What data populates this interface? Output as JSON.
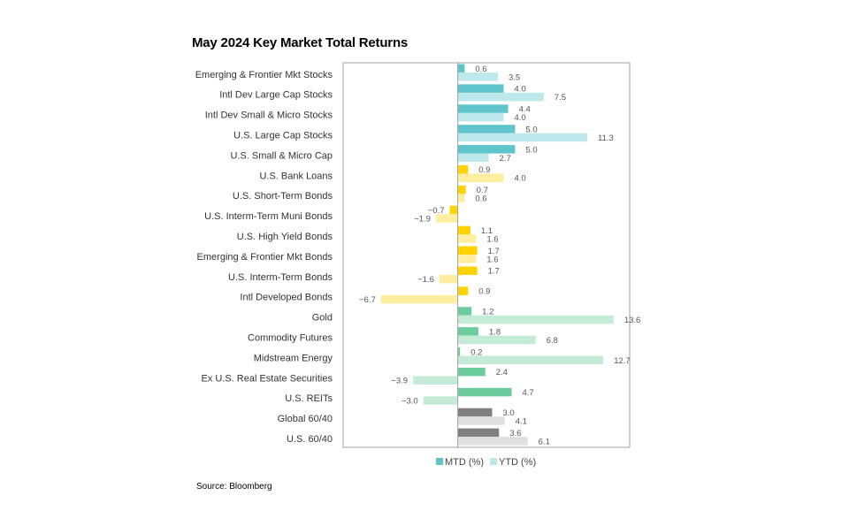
{
  "chart_data": {
    "type": "bar",
    "orientation": "horizontal",
    "title": "May 2024 Key Market Total Returns",
    "xlim": [
      -10,
      15
    ],
    "grid": false,
    "legend_position": "bottom",
    "categories": [
      "Emerging & Frontier Mkt Stocks",
      "Intl Dev Large Cap Stocks",
      "Intl Dev Small & Micro Stocks",
      "U.S. Large Cap Stocks",
      "U.S. Small & Micro Cap",
      "U.S. Bank Loans",
      "U.S. Short-Term Bonds",
      "U.S. Interm-Term Muni Bonds",
      "U.S. High Yield Bonds",
      "Emerging & Frontier Mkt Bonds",
      "U.S. Interm-Term Bonds",
      "Intl Developed Bonds",
      "Gold",
      "Commodity Futures",
      "Midstream Energy",
      "Ex U.S. Real Estate Securities",
      "U.S. REITs",
      "Global 60/40",
      "U.S. 60/40"
    ],
    "groups": [
      "equity",
      "equity",
      "equity",
      "equity",
      "equity",
      "bond",
      "bond",
      "bond",
      "bond",
      "bond",
      "bond",
      "bond",
      "real",
      "real",
      "real",
      "real",
      "real",
      "blend",
      "blend"
    ],
    "series": [
      {
        "name": "MTD (%)",
        "values": [
          0.6,
          4.0,
          4.4,
          5.0,
          5.0,
          0.9,
          0.7,
          -0.7,
          1.1,
          1.7,
          1.7,
          0.9,
          1.2,
          1.8,
          0.2,
          2.4,
          4.7,
          3.0,
          3.6
        ]
      },
      {
        "name": "YTD (%)",
        "values": [
          3.5,
          7.5,
          4.0,
          11.3,
          2.7,
          4.0,
          0.6,
          -1.9,
          1.6,
          1.6,
          -1.6,
          -6.7,
          13.6,
          6.8,
          12.7,
          -3.9,
          -3.0,
          4.1,
          6.1
        ]
      }
    ],
    "colors": {
      "equity": [
        "#5fc4cc",
        "#bde8ec"
      ],
      "bond": [
        "#ffd200",
        "#ffeea0"
      ],
      "real": [
        "#6dcc9e",
        "#c4ebd6"
      ],
      "blend": [
        "#808080",
        "#e0e0e0"
      ]
    }
  },
  "source": "Source: Bloomberg"
}
